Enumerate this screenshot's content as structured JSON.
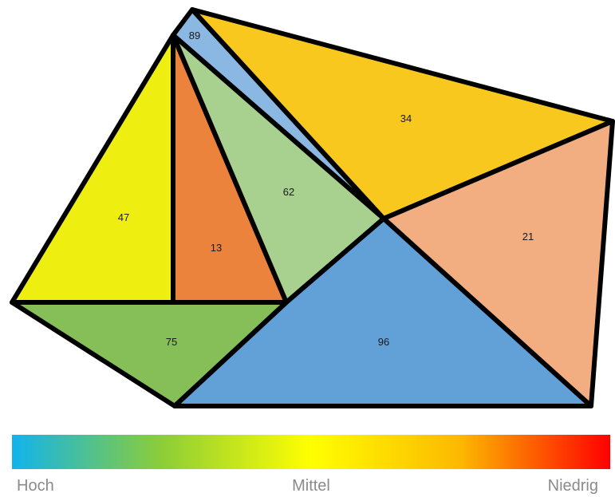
{
  "regions": [
    {
      "id": "r89",
      "label": "89",
      "color": "#8ab8e2"
    },
    {
      "id": "r34",
      "label": "34",
      "color": "#f8c81e"
    },
    {
      "id": "r47",
      "label": "47",
      "color": "#eeee10"
    },
    {
      "id": "r13",
      "label": "13",
      "color": "#ec833c"
    },
    {
      "id": "r62",
      "label": "62",
      "color": "#a8d08e"
    },
    {
      "id": "r21",
      "label": "21",
      "color": "#f2ae80"
    },
    {
      "id": "r75",
      "label": "75",
      "color": "#86be58"
    },
    {
      "id": "r96",
      "label": "96",
      "color": "#62a0d8"
    }
  ],
  "color_scale": {
    "stops": [
      "#10b4ec",
      "#8ccd38",
      "#ffff00",
      "#fcb800",
      "#ff0000"
    ],
    "labels": {
      "low": "Hoch",
      "mid": "Mittel",
      "high": "Niedrig"
    }
  }
}
